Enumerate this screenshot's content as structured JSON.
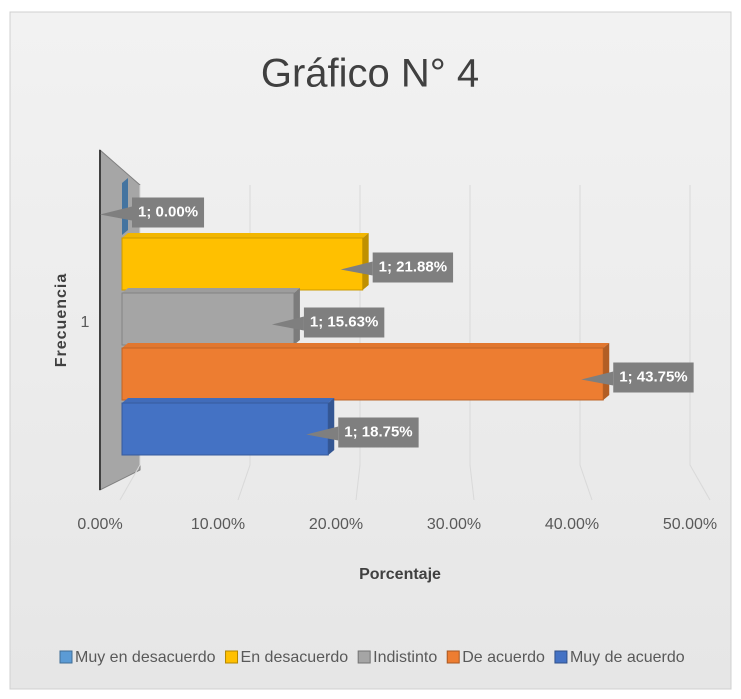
{
  "chart_data": {
    "type": "bar",
    "orientation": "horizontal",
    "title": "Gráfico N° 4",
    "x_label": "Porcentaje",
    "y_label": "Frecuencia",
    "categories": [
      "1"
    ],
    "series": [
      {
        "name": "Muy en desacuerdo",
        "color": "#5b9bd5",
        "values": [
          0
        ],
        "value_labels": [
          "1; 0.00%"
        ]
      },
      {
        "name": "En desacuerdo",
        "color": "#ffc000",
        "values": [
          21.88
        ],
        "value_labels": [
          "1; 21.88%"
        ]
      },
      {
        "name": "Indistinto",
        "color": "#a5a5a5",
        "values": [
          15.63
        ],
        "value_labels": [
          "1; 15.63%"
        ]
      },
      {
        "name": "De acuerdo",
        "color": "#ed7d31",
        "values": [
          43.75
        ],
        "value_labels": [
          "1; 43.75%"
        ]
      },
      {
        "name": "Muy de acuerdo",
        "color": "#4472c4",
        "values": [
          18.75
        ],
        "value_labels": [
          "1; 18.75%"
        ]
      }
    ],
    "xlim": [
      0,
      50
    ],
    "xticks": [
      {
        "value": 0,
        "label": "0.00%"
      },
      {
        "value": 10,
        "label": "10.00%"
      },
      {
        "value": 20,
        "label": "20.00%"
      },
      {
        "value": 30,
        "label": "30.00%"
      },
      {
        "value": 40,
        "label": "40.00%"
      },
      {
        "value": 50,
        "label": "50.00%"
      }
    ],
    "grid": true,
    "legend": "bottom"
  }
}
